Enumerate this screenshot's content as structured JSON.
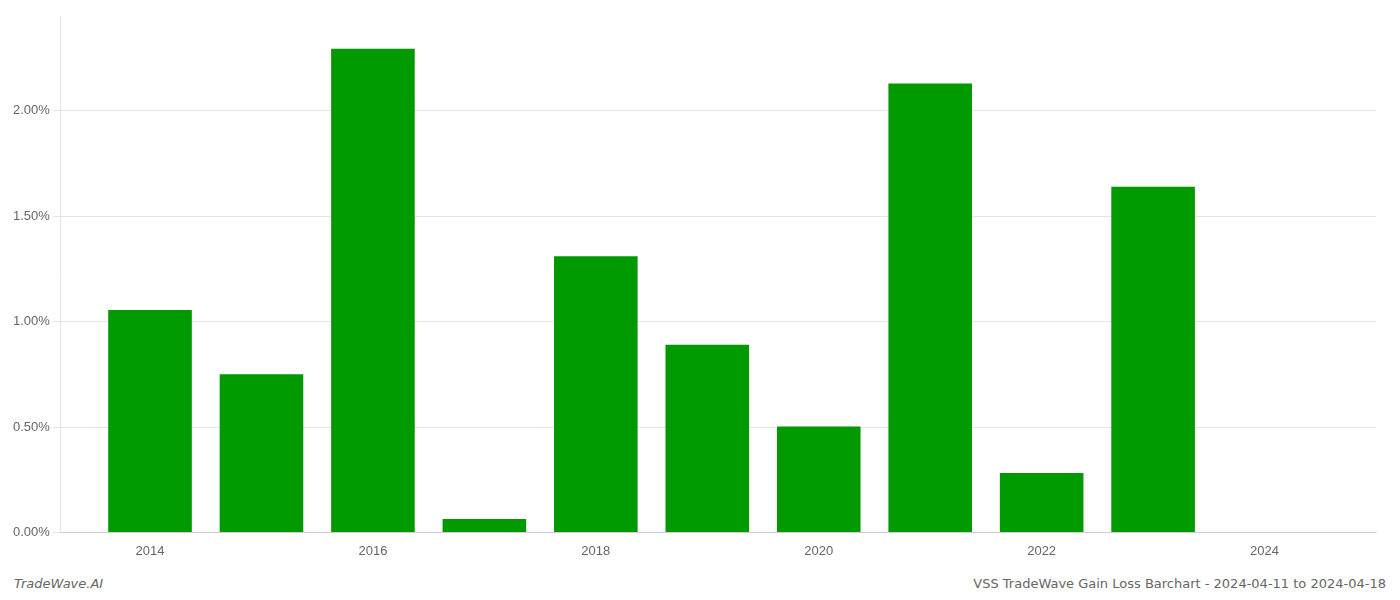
{
  "chart_data": {
    "type": "bar",
    "x": [
      2014,
      2015,
      2016,
      2017,
      2018,
      2019,
      2020,
      2021,
      2022,
      2023,
      2024
    ],
    "values": [
      0.01055,
      0.0075,
      0.02295,
      0.00063,
      0.0131,
      0.0089,
      0.00502,
      0.0213,
      0.00282,
      0.0164,
      0.0
    ],
    "color": "#009900",
    "xlim": [
      2013.2,
      2025.0
    ],
    "xticks": [
      2014,
      2016,
      2018,
      2020,
      2022,
      2024
    ],
    "ylim": [
      0,
      0.0245
    ],
    "yticks": [
      {
        "value": 0.0,
        "label": "0.00%"
      },
      {
        "value": 0.005,
        "label": "0.50%"
      },
      {
        "value": 0.01,
        "label": "1.00%"
      },
      {
        "value": 0.015,
        "label": "1.50%"
      },
      {
        "value": 0.02,
        "label": "2.00%"
      }
    ],
    "grid": true,
    "annotations": [
      "TradeWave.AI",
      "VSS TradeWave Gain Loss Barchart - 2024-04-11 to 2024-04-18"
    ]
  }
}
